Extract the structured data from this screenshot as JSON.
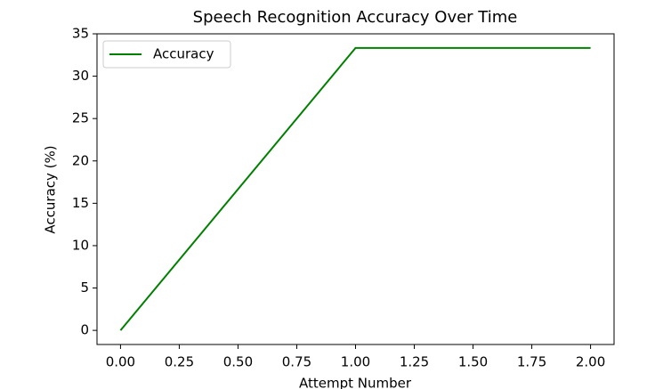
{
  "chart_data": {
    "type": "line",
    "title": "Speech Recognition Accuracy Over Time",
    "x_label": "Attempt Number",
    "y_label": "Accuracy (%)",
    "x": [
      0,
      1,
      2
    ],
    "series": [
      {
        "name": "Accuracy",
        "color": "#008000",
        "values": [
          0,
          33.33,
          33.33
        ]
      }
    ],
    "xlim": [
      -0.1,
      2.1
    ],
    "ylim": [
      -1.667,
      35
    ],
    "xticks": [
      {
        "value": 0,
        "label": "0.00"
      },
      {
        "value": 0.25,
        "label": "0.25"
      },
      {
        "value": 0.5,
        "label": "0.50"
      },
      {
        "value": 0.75,
        "label": "0.75"
      },
      {
        "value": 1,
        "label": "1.00"
      },
      {
        "value": 1.25,
        "label": "1.25"
      },
      {
        "value": 1.5,
        "label": "1.50"
      },
      {
        "value": 1.75,
        "label": "1.75"
      },
      {
        "value": 2,
        "label": "2.00"
      }
    ],
    "yticks": [
      0,
      5,
      10,
      15,
      20,
      25,
      30,
      35
    ],
    "legend": "upper left"
  }
}
